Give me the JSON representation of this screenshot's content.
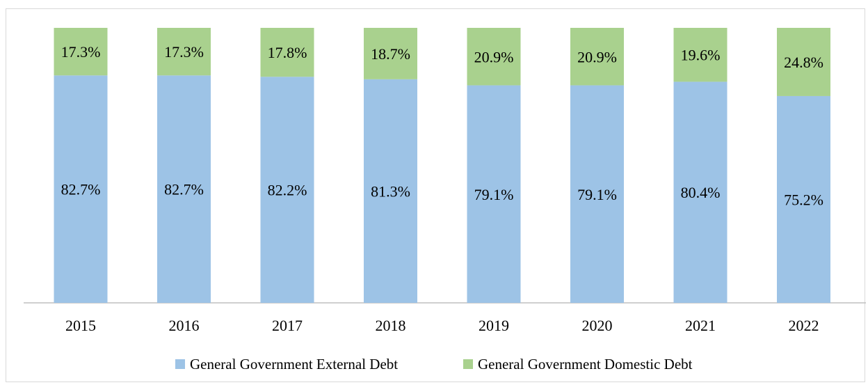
{
  "chart_data": {
    "type": "bar",
    "stacked": true,
    "categories": [
      "2015",
      "2016",
      "2017",
      "2018",
      "2019",
      "2020",
      "2021",
      "2022"
    ],
    "series": [
      {
        "name": "General Government External Debt",
        "color": "#9dc3e6",
        "values": [
          82.7,
          82.7,
          82.2,
          81.3,
          79.1,
          79.1,
          80.4,
          75.2
        ]
      },
      {
        "name": "General Government Domestic Debt",
        "color": "#a9d18e",
        "values": [
          17.3,
          17.3,
          17.8,
          18.7,
          20.9,
          20.9,
          19.6,
          24.8
        ]
      }
    ],
    "value_suffix": "%",
    "ylim": [
      0,
      100
    ],
    "grid": false,
    "legend": "bottom"
  }
}
